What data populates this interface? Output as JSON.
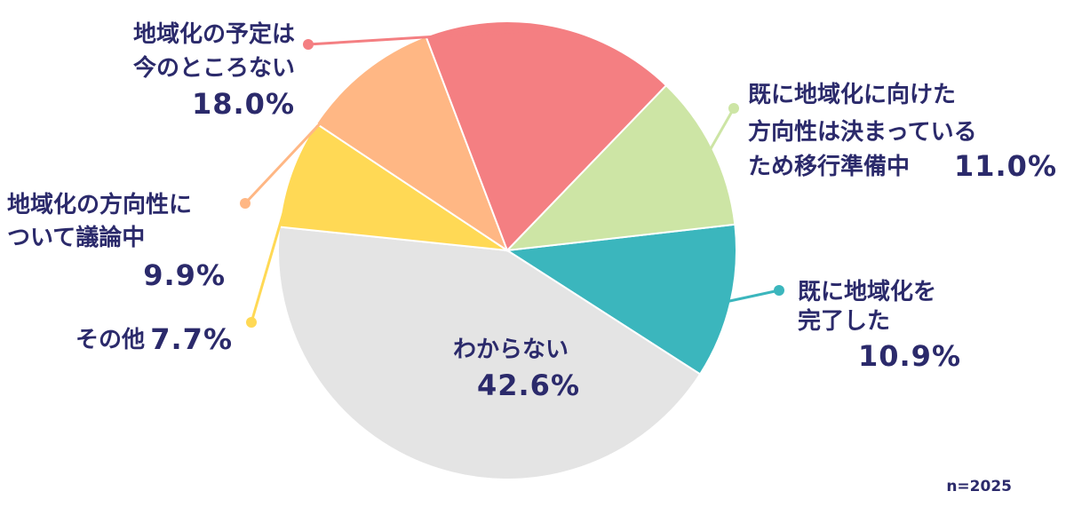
{
  "chart_data": {
    "type": "pie",
    "slices": [
      {
        "key": "complete",
        "label_lines": [
          "既に地域化を",
          "完了した"
        ],
        "value": 10.9,
        "value_text": "10.9%",
        "color": "#3bb6bd"
      },
      {
        "key": "unknown",
        "label_lines": [
          "わからない"
        ],
        "value": 42.6,
        "value_text": "42.6%",
        "color": "#e4e4e4"
      },
      {
        "key": "other",
        "label_lines": [
          "その他"
        ],
        "value": 7.7,
        "value_text": "7.7%",
        "color": "#ffd955"
      },
      {
        "key": "discussing",
        "label_lines": [
          "地域化の方向性に",
          "ついて議論中"
        ],
        "value": 9.9,
        "value_text": "9.9%",
        "color": "#ffb784"
      },
      {
        "key": "no_plan",
        "label_lines": [
          "地域化の予定は",
          "今のところない"
        ],
        "value": 18.0,
        "value_text": "18.0%",
        "color": "#f47f82"
      },
      {
        "key": "preparing",
        "label_lines": [
          "既に地域化に向けた",
          "方向性は決まっている",
          "ため移行準備中"
        ],
        "value": 11.0,
        "value_text": "11.0%",
        "color": "#cde5a5"
      }
    ],
    "note": "n=2025"
  }
}
